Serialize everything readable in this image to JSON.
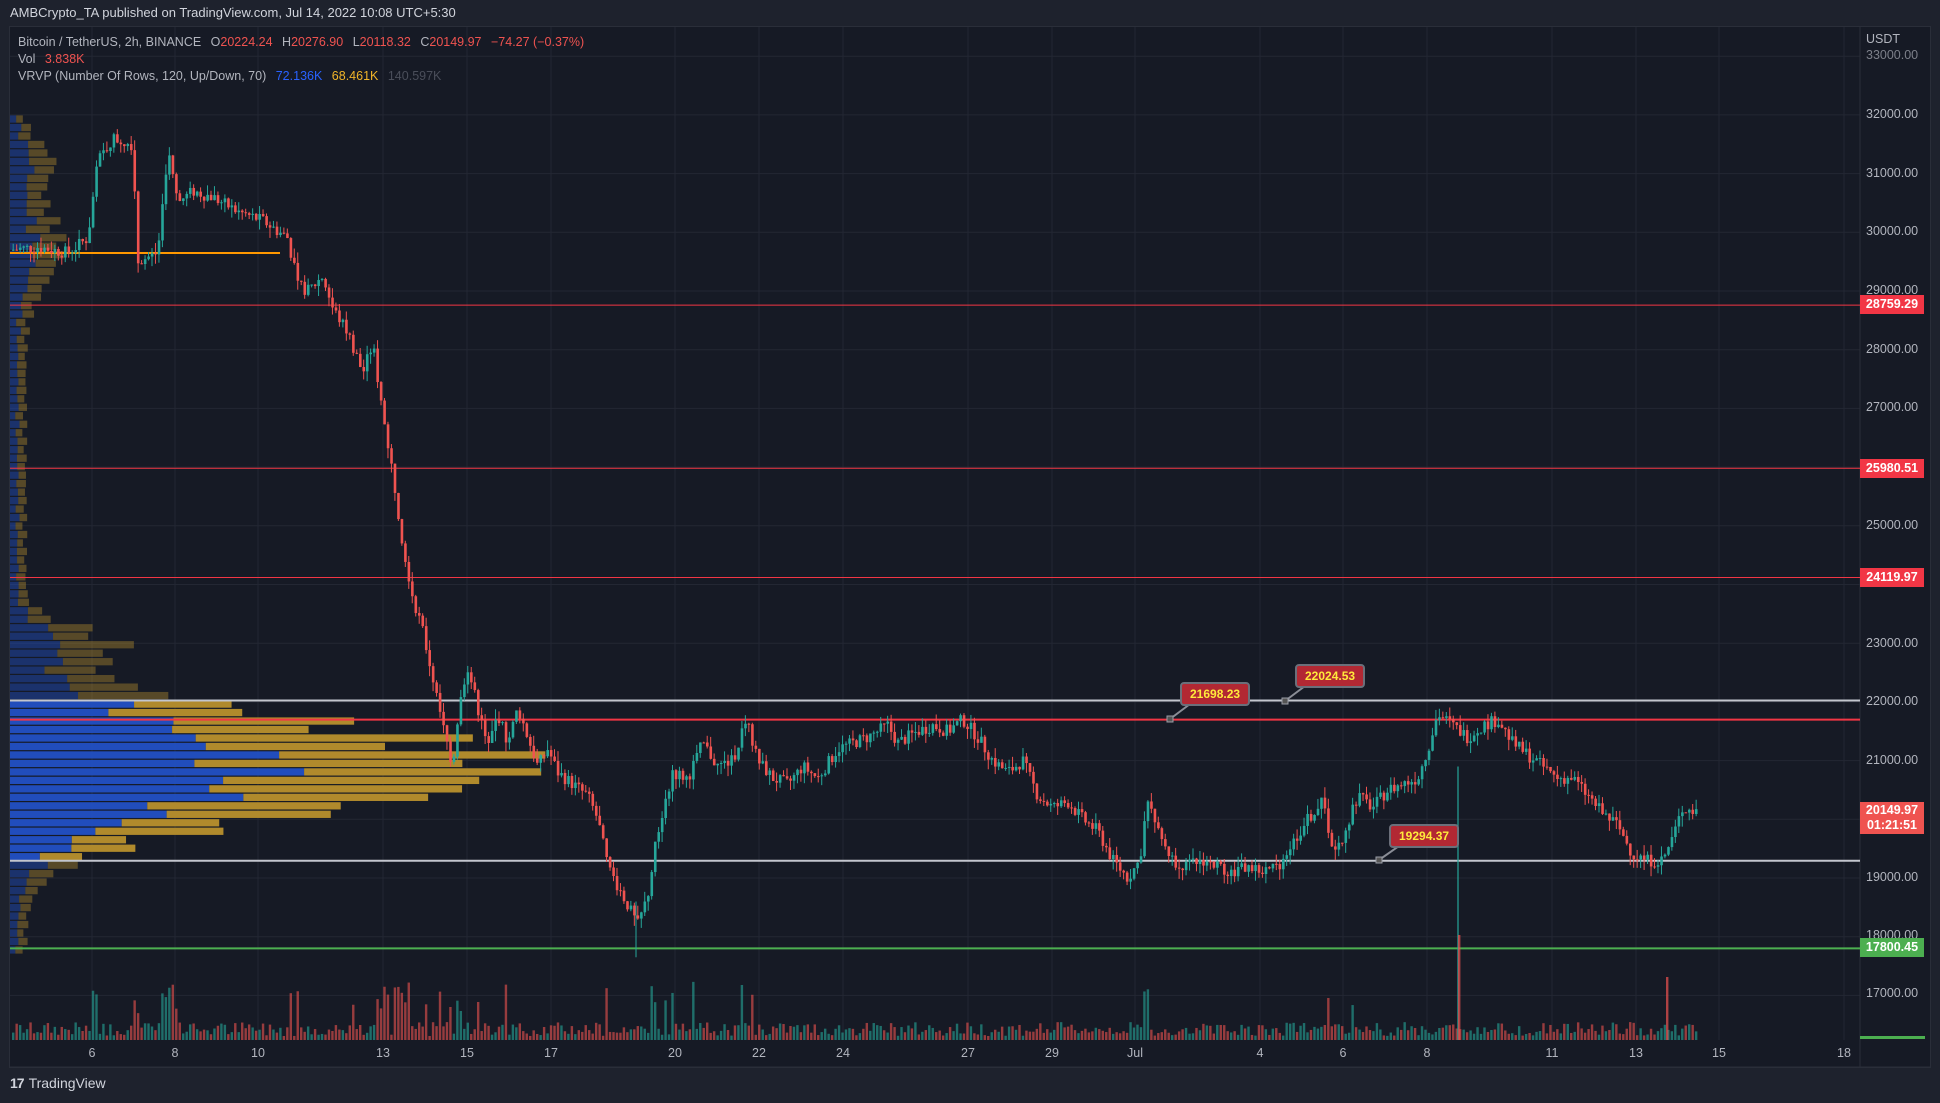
{
  "header": {
    "publisher": "AMBCrypto_TA published on TradingView.com, Jul 14, 2022 10:08 UTC+5:30"
  },
  "legend": {
    "symbol": "Bitcoin / TetherUS, 2h, BINANCE",
    "o_label": "O",
    "o": "20224.24",
    "h_label": "H",
    "h": "20276.90",
    "l_label": "L",
    "l": "20118.32",
    "c_label": "C",
    "c": "20149.97",
    "change": "−74.27 (−0.37%)",
    "vol_label": "Vol",
    "vol": "3.838K",
    "vrvp_label": "VRVP (Number Of Rows, 120, Up/Down, 70)",
    "vrvp_up": "72.136K",
    "vrvp_down": "68.461K",
    "vrvp_total": "140.597K"
  },
  "footer": {
    "brand": "TradingView",
    "logo_mark": "17"
  },
  "colors": {
    "up": "#26a69a",
    "down": "#ef5350",
    "resistance": "#f23645",
    "support_green": "#4caf50",
    "white_line": "#c3c6ce",
    "poc_orange": "#ff9800",
    "vp_up": "#2250c4",
    "vp_down": "#b8902c",
    "bg": "#161a25"
  },
  "chart_data": {
    "type": "candlestick",
    "title": "Bitcoin / TetherUS, 2h, BINANCE",
    "ylabel": "USDT",
    "ylim": [
      16500,
      33200
    ],
    "y_ticks": [
      "33000.00",
      "32000.00",
      "31000.00",
      "30000.00",
      "29000.00",
      "28000.00",
      "27000.00",
      "25000.00",
      "23000.00",
      "22000.00",
      "21000.00",
      "19000.00",
      "18000.00",
      "17000.00"
    ],
    "x_ticks": [
      "6",
      "8",
      "10",
      "13",
      "15",
      "17",
      "20",
      "22",
      "24",
      "27",
      "29",
      "Jul",
      "4",
      "6",
      "8",
      "11",
      "13",
      "15",
      "18"
    ],
    "horizontal_levels": [
      {
        "price": 28759.29,
        "label": "28759.29",
        "color": "red"
      },
      {
        "price": 25980.51,
        "label": "25980.51",
        "color": "red"
      },
      {
        "price": 24119.97,
        "label": "24119.97",
        "color": "red"
      },
      {
        "price": 22024.53,
        "label": "22024.53",
        "color": "white"
      },
      {
        "price": 21698.23,
        "label": "21698.23",
        "color": "red"
      },
      {
        "price": 19294.37,
        "label": "19294.37",
        "color": "white"
      },
      {
        "price": 17800.45,
        "label": "17800.45",
        "color": "green"
      }
    ],
    "last_price": {
      "price": "20149.97",
      "countdown": "01:21:51"
    },
    "callouts": [
      "21698.23",
      "22024.53",
      "19294.37"
    ],
    "price_path": [
      [
        12,
        29700
      ],
      [
        40,
        29750
      ],
      [
        70,
        29650
      ],
      [
        90,
        29900
      ],
      [
        100,
        31200
      ],
      [
        115,
        31600
      ],
      [
        135,
        31500
      ],
      [
        140,
        29500
      ],
      [
        160,
        29650
      ],
      [
        170,
        31400
      ],
      [
        180,
        30500
      ],
      [
        195,
        30700
      ],
      [
        215,
        30600
      ],
      [
        240,
        30350
      ],
      [
        265,
        30200
      ],
      [
        290,
        29900
      ],
      [
        300,
        29100
      ],
      [
        310,
        29000
      ],
      [
        325,
        29250
      ],
      [
        335,
        28700
      ],
      [
        350,
        28300
      ],
      [
        365,
        27600
      ],
      [
        375,
        28100
      ],
      [
        385,
        26900
      ],
      [
        395,
        25900
      ],
      [
        405,
        24700
      ],
      [
        415,
        23800
      ],
      [
        425,
        23200
      ],
      [
        435,
        22400
      ],
      [
        445,
        21600
      ],
      [
        455,
        20900
      ],
      [
        462,
        22100
      ],
      [
        470,
        22600
      ],
      [
        480,
        21900
      ],
      [
        490,
        21200
      ],
      [
        500,
        21800
      ],
      [
        510,
        21300
      ],
      [
        520,
        21900
      ],
      [
        530,
        21400
      ],
      [
        540,
        20900
      ],
      [
        550,
        21200
      ],
      [
        560,
        20800
      ],
      [
        575,
        20600
      ],
      [
        590,
        20400
      ],
      [
        600,
        20000
      ],
      [
        610,
        19200
      ],
      [
        625,
        18700
      ],
      [
        640,
        18200
      ],
      [
        650,
        18700
      ],
      [
        660,
        19800
      ],
      [
        675,
        20800
      ],
      [
        690,
        20700
      ],
      [
        705,
        21300
      ],
      [
        720,
        20900
      ],
      [
        735,
        21000
      ],
      [
        748,
        21700
      ],
      [
        760,
        21000
      ],
      [
        775,
        20700
      ],
      [
        790,
        20600
      ],
      [
        805,
        20900
      ],
      [
        820,
        20700
      ],
      [
        840,
        21200
      ],
      [
        855,
        21300
      ],
      [
        870,
        21400
      ],
      [
        890,
        21600
      ],
      [
        900,
        21300
      ],
      [
        920,
        21500
      ],
      [
        935,
        21600
      ],
      [
        950,
        21500
      ],
      [
        965,
        21700
      ],
      [
        980,
        21400
      ],
      [
        995,
        21000
      ],
      [
        1010,
        20800
      ],
      [
        1025,
        21000
      ],
      [
        1040,
        20400
      ],
      [
        1055,
        20200
      ],
      [
        1070,
        20300
      ],
      [
        1085,
        20000
      ],
      [
        1100,
        19800
      ],
      [
        1115,
        19300
      ],
      [
        1130,
        19000
      ],
      [
        1142,
        19300
      ],
      [
        1150,
        20400
      ],
      [
        1160,
        19800
      ],
      [
        1175,
        19300
      ],
      [
        1190,
        19200
      ],
      [
        1205,
        19300
      ],
      [
        1220,
        19200
      ],
      [
        1235,
        19100
      ],
      [
        1250,
        19200
      ],
      [
        1265,
        19100
      ],
      [
        1280,
        19200
      ],
      [
        1295,
        19600
      ],
      [
        1310,
        20000
      ],
      [
        1325,
        20300
      ],
      [
        1335,
        19500
      ],
      [
        1345,
        19700
      ],
      [
        1360,
        20400
      ],
      [
        1375,
        20200
      ],
      [
        1390,
        20500
      ],
      [
        1405,
        20600
      ],
      [
        1420,
        20700
      ],
      [
        1430,
        21200
      ],
      [
        1440,
        21800
      ],
      [
        1455,
        21600
      ],
      [
        1470,
        21400
      ],
      [
        1485,
        21600
      ],
      [
        1500,
        21700
      ],
      [
        1515,
        21300
      ],
      [
        1530,
        21100
      ],
      [
        1545,
        20900
      ],
      [
        1560,
        20700
      ],
      [
        1575,
        20700
      ],
      [
        1590,
        20400
      ],
      [
        1605,
        20100
      ],
      [
        1620,
        19900
      ],
      [
        1635,
        19400
      ],
      [
        1650,
        19300
      ],
      [
        1665,
        19300
      ],
      [
        1675,
        19700
      ],
      [
        1685,
        20200
      ],
      [
        1695,
        20150
      ]
    ],
    "volume_profile_note": "Visible-range volume profile (VRVP) on left; value area 19294-22024 highlighted; POC near 21698"
  }
}
